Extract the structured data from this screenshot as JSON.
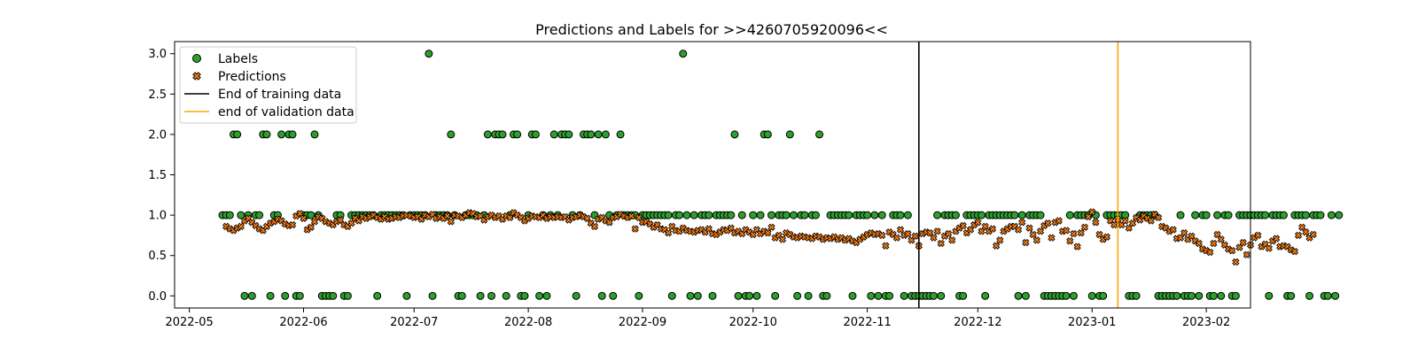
{
  "chart_data": {
    "type": "scatter",
    "title": "Predictions and Labels for >>4260705920096<<",
    "xlabel": "",
    "ylabel": "",
    "xlim": [
      "2022-04-27",
      "2023-02-13"
    ],
    "ylim": [
      -0.15,
      3.15
    ],
    "xticks": [
      "2022-05",
      "2022-06",
      "2022-07",
      "2022-08",
      "2022-09",
      "2022-10",
      "2022-11",
      "2022-12",
      "2023-01",
      "2023-02"
    ],
    "yticks": [
      "0.0",
      "0.5",
      "1.0",
      "1.5",
      "2.0",
      "2.5",
      "3.0"
    ],
    "grid": false,
    "legend_position": "upper-left",
    "legend": {
      "labels": "Labels",
      "predictions": "Predictions",
      "end_training": "End of training data",
      "end_validation": "end of validation data"
    },
    "colors": {
      "labels": "#2ca02c",
      "predictions": "#ff7f0e",
      "end_training": "#000000",
      "end_validation": "#ffa500"
    },
    "vlines": {
      "end_training": "2022-11-15",
      "end_validation": "2023-01-08"
    },
    "start_date": "2022-05-10",
    "labels_values": [
      1,
      1,
      1,
      2,
      2,
      1,
      0,
      1,
      0,
      1,
      1,
      2,
      2,
      0,
      1,
      1,
      2,
      0,
      2,
      2,
      0,
      0,
      1,
      1,
      1,
      2,
      1,
      0,
      0,
      0,
      0,
      1,
      1,
      0,
      0,
      1,
      1,
      1,
      1,
      1,
      1,
      1,
      0,
      1,
      1,
      1,
      1,
      1,
      1,
      1,
      0,
      1,
      1,
      1,
      1,
      1,
      3,
      0,
      1,
      1,
      1,
      1,
      2,
      1,
      0,
      0,
      1,
      1,
      1,
      1,
      0,
      1,
      2,
      0,
      2,
      2,
      2,
      0,
      1,
      2,
      2,
      0,
      0,
      1,
      2,
      2,
      0,
      1,
      0,
      1,
      2,
      1,
      2,
      2,
      2,
      1,
      0,
      1,
      2,
      2,
      2,
      1,
      2,
      0,
      2,
      1,
      0,
      1,
      2,
      1,
      1,
      1,
      1,
      0,
      1,
      1,
      1,
      1,
      1,
      1,
      1,
      1,
      0,
      1,
      1,
      3,
      1,
      0,
      1,
      0,
      1,
      1,
      1,
      0,
      1,
      1,
      1,
      1,
      1,
      2,
      0,
      1,
      0,
      0,
      1,
      0,
      1,
      2,
      2,
      1,
      0,
      1,
      1,
      1,
      2,
      1,
      0,
      1,
      1,
      0,
      1,
      1,
      2,
      0,
      0,
      1,
      1,
      1,
      1,
      1,
      1,
      0,
      1,
      1,
      1,
      1,
      0,
      1,
      0,
      1,
      0,
      0,
      1,
      1,
      1,
      0,
      1,
      0,
      0,
      0,
      0,
      0,
      0,
      0,
      1,
      0,
      1,
      1,
      1,
      1,
      0,
      0,
      1,
      1,
      1,
      1,
      1,
      0,
      1,
      1,
      1,
      1,
      1,
      1,
      1,
      1,
      0,
      1,
      0,
      1,
      1,
      1,
      1,
      0,
      0,
      0,
      0,
      0,
      0,
      0,
      1,
      0,
      1,
      1,
      1,
      1,
      0,
      1,
      0,
      0,
      1,
      1,
      1,
      1,
      1,
      1,
      0,
      0,
      0,
      1,
      1,
      1,
      1,
      1,
      0,
      0,
      0,
      0,
      0,
      0,
      1,
      0,
      0,
      0,
      1,
      0,
      1,
      1,
      0,
      0,
      1,
      0,
      1,
      1,
      0,
      0,
      1,
      1,
      1,
      1,
      1,
      1,
      1,
      1,
      0,
      1,
      1,
      1,
      1,
      0,
      0,
      1,
      1,
      1,
      1,
      0,
      1,
      1,
      1,
      0,
      0,
      1,
      0,
      1
    ],
    "predictions_values": [
      0.86,
      0.83,
      0.81,
      0.84,
      0.86,
      0.93,
      0.96,
      0.91,
      0.87,
      0.83,
      0.81,
      0.86,
      0.9,
      0.92,
      0.95,
      0.93,
      0.89,
      0.87,
      0.88,
      0.99,
      1.02,
      0.96,
      0.82,
      0.85,
      0.92,
      0.98,
      0.96,
      0.92,
      0.9,
      0.88,
      0.92,
      0.94,
      0.88,
      0.86,
      0.9,
      0.96,
      0.93,
      0.98,
      0.96,
      0.98,
      1,
      0.97,
      0.95,
      0.98,
      0.95,
      0.96,
      0.98,
      0.97,
      0.99,
      1,
      0.99,
      0.97,
      0.98,
      0.95,
      1,
      0.98,
      1.01,
      0.96,
      0.98,
      0.96,
      0.99,
      0.92,
      1,
      0.99,
      0.97,
      1,
      1.03,
      1.02,
      0.98,
      0.99,
      0.94,
      0.98,
      1,
      0.97,
      0.99,
      0.95,
      0.99,
      0.97,
      1.03,
      1,
      0.97,
      0.93,
      0.96,
      0.99,
      0.98,
      0.97,
      1,
      0.96,
      0.98,
      0.97,
      0.98,
      0.97,
      0.98,
      0.94,
      0.97,
      0.98,
      1,
      0.98,
      0.96,
      0.9,
      0.86,
      0.95,
      0.97,
      0.93,
      0.91,
      0.97,
      0.98,
      1.01,
      0.99,
      0.97,
      0.99,
      0.83,
      0.97,
      0.91,
      0.92,
      0.89,
      0.85,
      0.88,
      0.83,
      0.82,
      0.78,
      0.86,
      0.81,
      0.8,
      0.84,
      0.81,
      0.8,
      0.79,
      0.81,
      0.82,
      0.79,
      0.83,
      0.77,
      0.76,
      0.79,
      0.82,
      0.81,
      0.84,
      0.78,
      0.8,
      0.77,
      0.82,
      0.79,
      0.76,
      0.82,
      0.77,
      0.8,
      0.78,
      0.85,
      0.72,
      0.75,
      0.7,
      0.78,
      0.76,
      0.73,
      0.72,
      0.74,
      0.73,
      0.72,
      0.71,
      0.74,
      0.73,
      0.7,
      0.72,
      0.71,
      0.73,
      0.7,
      0.72,
      0.69,
      0.71,
      0.68,
      0.66,
      0.7,
      0.73,
      0.76,
      0.78,
      0.76,
      0.77,
      0.75,
      0.62,
      0.79,
      0.76,
      0.72,
      0.82,
      0.75,
      0.77,
      0.69,
      0.74,
      0.62,
      0.77,
      0.79,
      0.78,
      0.72,
      0.8,
      0.65,
      0.74,
      0.77,
      0.69,
      0.8,
      0.84,
      0.87,
      0.78,
      0.82,
      0.88,
      0.91,
      0.8,
      0.86,
      0.8,
      0.83,
      0.62,
      0.69,
      0.8,
      0.83,
      0.86,
      0.86,
      0.82,
      0.91,
      0.66,
      0.84,
      0.76,
      0.69,
      0.8,
      0.87,
      0.9,
      0.72,
      0.91,
      0.93,
      0.8,
      0.81,
      0.68,
      0.77,
      0.61,
      0.78,
      0.85,
      0.98,
      1.04,
      0.91,
      0.76,
      0.7,
      0.73,
      0.93,
      0.88,
      0.95,
      0.88,
      0.93,
      0.84,
      0.9,
      0.97,
      0.94,
      0.99,
      0.96,
      0.93,
      1.01,
      0.97,
      0.86,
      0.84,
      0.8,
      0.82,
      0.71,
      0.72,
      0.78,
      0.7,
      0.74,
      0.68,
      0.65,
      0.58,
      0.56,
      0.54,
      0.65,
      0.76,
      0.7,
      0.63,
      0.58,
      0.56,
      0.42,
      0.6,
      0.66,
      0.51,
      0.63,
      0.72,
      0.75,
      0.61,
      0.64,
      0.59,
      0.68,
      0.71,
      0.61,
      0.62,
      0.61,
      0.57,
      0.55,
      0.75,
      0.85,
      0.79,
      0.72,
      0.76
    ]
  }
}
